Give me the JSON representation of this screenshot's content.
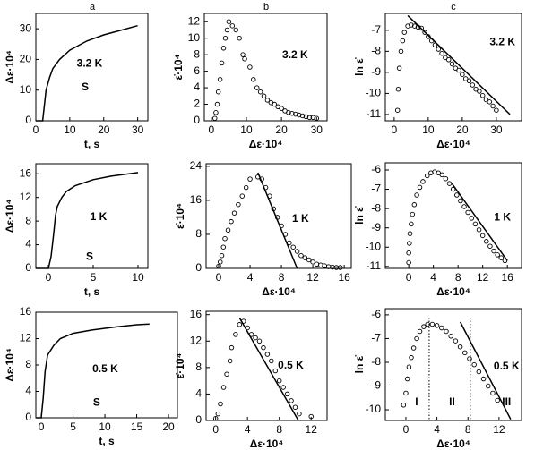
{
  "column_labels": [
    "a",
    "b",
    "c"
  ],
  "chart_data": [
    {
      "type": "line",
      "xlabel": "t, s",
      "ylabel": "Δε·10⁴",
      "annotations": [
        "3.2 K",
        "S"
      ],
      "color": "#000000",
      "xlim": [
        0,
        33
      ],
      "ylim": [
        0,
        35
      ],
      "xticks": [
        0,
        10,
        20,
        30
      ],
      "yticks": [
        0,
        10,
        20,
        30
      ],
      "x": [
        0,
        2,
        2.5,
        3,
        4,
        5,
        7,
        10,
        15,
        20,
        25,
        30
      ],
      "values": [
        0,
        0,
        5,
        10,
        14,
        17,
        20,
        23,
        26,
        28,
        29.5,
        31
      ]
    },
    {
      "type": "scatter",
      "xlabel": "Δε·10⁴",
      "ylabel": "ε̇·10⁴",
      "annotations": [
        "3.2 K"
      ],
      "color": "#000000",
      "xlim": [
        -2,
        33
      ],
      "ylim": [
        0,
        13
      ],
      "xticks": [
        0,
        10,
        20,
        30
      ],
      "yticks": [
        0,
        2,
        4,
        6,
        8,
        10,
        12
      ],
      "x": [
        1,
        1.3,
        1.7,
        2,
        2.5,
        3,
        3.5,
        4,
        4.5,
        5,
        6,
        7,
        8,
        9,
        9.5,
        11,
        12,
        13,
        14,
        15,
        16,
        17,
        18,
        19,
        20,
        21,
        22,
        23,
        24,
        25,
        26,
        27,
        28,
        29,
        30
      ],
      "values": [
        0.3,
        1,
        2,
        3.5,
        5,
        7,
        8.8,
        10,
        11,
        12,
        11.5,
        11,
        10,
        8,
        7.5,
        6.5,
        5,
        4,
        3.5,
        3,
        2.5,
        2.2,
        2,
        1.7,
        1.5,
        1.2,
        1,
        0.9,
        0.8,
        0.7,
        0.6,
        0.5,
        0.4,
        0.4,
        0.3
      ]
    },
    {
      "type": "scatter",
      "xlabel": "Δε·10⁴",
      "ylabel": "ln ε̇",
      "annotations": [
        "3.2 K"
      ],
      "color": "#000000",
      "xlim": [
        -2.6,
        37.4
      ],
      "ylim": [
        -11.3,
        -6.2
      ],
      "xticks": [
        0,
        10,
        20,
        30
      ],
      "yticks": [
        -7,
        -8,
        -9,
        -10,
        -11
      ],
      "x": [
        1,
        1.2,
        1.5,
        2,
        2.5,
        3,
        4,
        5,
        6,
        7,
        8,
        9,
        10,
        11,
        12,
        13,
        14,
        15,
        16,
        17,
        18,
        19,
        20,
        21,
        22,
        23,
        24,
        25,
        26,
        27,
        28,
        29,
        30
      ],
      "values": [
        -10.8,
        -9.8,
        -8.8,
        -8,
        -7.5,
        -7.1,
        -6.8,
        -6.75,
        -6.8,
        -6.85,
        -6.9,
        -7.1,
        -7.3,
        -7.5,
        -7.7,
        -7.9,
        -8.1,
        -8.3,
        -8.4,
        -8.6,
        -8.8,
        -8.9,
        -9.1,
        -9.3,
        -9.4,
        -9.6,
        -9.8,
        -9.9,
        -10.1,
        -10.3,
        -10.4,
        -10.6,
        -10.8
      ],
      "fit_x": [
        4,
        34
      ],
      "fit_values": [
        -6.3,
        -11
      ]
    },
    {
      "type": "line",
      "xlabel": "t, s",
      "ylabel": "Δε·10⁴",
      "annotations": [
        "1 K",
        "S"
      ],
      "color": "#000000",
      "xlim": [
        -1.4,
        11.1
      ],
      "ylim": [
        0,
        17.7
      ],
      "xticks": [
        0,
        5,
        10
      ],
      "yticks": [
        0,
        4,
        8,
        12,
        16
      ],
      "x": [
        -1.4,
        0,
        0.3,
        0.6,
        0.8,
        1,
        1.5,
        2,
        3,
        5,
        7,
        10
      ],
      "values": [
        0,
        0,
        2,
        6,
        9,
        10.5,
        12,
        13,
        14,
        15,
        15.6,
        16.2
      ]
    },
    {
      "type": "scatter",
      "xlabel": "Δε·10⁴",
      "ylabel": "ε̇·10⁴",
      "annotations": [
        "1 K"
      ],
      "color": "#000000",
      "xlim": [
        -1.6,
        16.9
      ],
      "ylim": [
        0,
        24.6
      ],
      "xticks": [
        0,
        4,
        8,
        12,
        16
      ],
      "yticks": [
        0,
        8,
        16,
        24
      ],
      "x": [
        0,
        0.2,
        0.4,
        0.6,
        0.8,
        1.2,
        1.6,
        2,
        2.5,
        3,
        3.5,
        4,
        5,
        5.5,
        6,
        6.5,
        7,
        7.5,
        8,
        8.5,
        9,
        9.5,
        10,
        10.5,
        11,
        11.5,
        12,
        12.5,
        13,
        13.5,
        14,
        14.5,
        15,
        15.5
      ],
      "values": [
        0.5,
        1.5,
        3,
        5,
        7,
        9,
        11,
        13,
        15,
        17,
        19,
        21,
        21.5,
        21,
        19,
        17,
        14,
        12,
        10,
        8,
        6,
        5,
        4,
        3,
        2.5,
        2,
        1.5,
        1,
        0.8,
        0.6,
        0.4,
        0.3,
        0.2,
        0.2
      ],
      "fit_x": [
        5,
        10
      ],
      "fit_values": [
        22.5,
        0
      ]
    },
    {
      "type": "scatter",
      "xlabel": "Δε·10⁴",
      "ylabel": "ln ε̇",
      "annotations": [
        "1 K"
      ],
      "color": "#000000",
      "xlim": [
        -3.8,
        18.3
      ],
      "ylim": [
        -11.1,
        -5.63
      ],
      "xticks": [
        0,
        4,
        8,
        12,
        16
      ],
      "yticks": [
        -6,
        -7,
        -8,
        -9,
        -10,
        -11
      ],
      "x": [
        0,
        0,
        0.1,
        0.2,
        0.4,
        0.6,
        0.9,
        1.3,
        1.8,
        2.3,
        3,
        3.6,
        4.2,
        4.8,
        5.4,
        6,
        6.6,
        7.2,
        7.8,
        8.4,
        9,
        9.6,
        10.2,
        10.8,
        11.4,
        12,
        12.6,
        13.2,
        13.8,
        14.4,
        15,
        15.6
      ],
      "values": [
        -10.8,
        -10.3,
        -9.8,
        -9.3,
        -8.8,
        -8.3,
        -7.8,
        -7.3,
        -6.9,
        -6.6,
        -6.3,
        -6.15,
        -6.1,
        -6.15,
        -6.25,
        -6.45,
        -6.7,
        -7,
        -7.3,
        -7.6,
        -7.9,
        -8.2,
        -8.5,
        -8.8,
        -9.1,
        -9.4,
        -9.7,
        -9.95,
        -10.2,
        -10.4,
        -10.55,
        -10.7
      ],
      "fit_x": [
        7,
        16
      ],
      "fit_values": [
        -6.7,
        -10.7
      ]
    },
    {
      "type": "line",
      "xlabel": "t, s",
      "ylabel": "Δε·10⁴",
      "annotations": [
        "0.5 K",
        "S"
      ],
      "color": "#000000",
      "xlim": [
        -0.85,
        21.4
      ],
      "ylim": [
        0,
        16
      ],
      "xticks": [
        0,
        5,
        10,
        15,
        20
      ],
      "yticks": [
        0,
        4,
        8,
        12,
        16
      ],
      "x": [
        -0.8,
        0,
        0.3,
        0.6,
        1,
        2,
        3,
        5,
        8,
        12,
        15,
        17
      ],
      "values": [
        0,
        0,
        3,
        7,
        9.5,
        11,
        12,
        12.8,
        13.3,
        13.8,
        14.1,
        14.2
      ]
    },
    {
      "type": "scatter",
      "xlabel": "Δε·10⁴",
      "ylabel": "ε̇·10⁴",
      "annotations": [
        "0.5 K"
      ],
      "color": "#000000",
      "xlim": [
        -1.2,
        14
      ],
      "ylim": [
        0,
        16.5
      ],
      "xticks": [
        0,
        4,
        8,
        12
      ],
      "yticks": [
        0,
        4,
        8,
        12,
        16
      ],
      "x": [
        0,
        0.3,
        0.6,
        1,
        1.4,
        1.8,
        2,
        2.5,
        3,
        3.5,
        4,
        4.5,
        5,
        5.5,
        6,
        6.5,
        7,
        7.5,
        8,
        8.5,
        9,
        9.5,
        10,
        10.5,
        12
      ],
      "values": [
        0.3,
        1,
        2.5,
        5,
        7,
        9,
        11,
        13,
        14.5,
        15,
        14,
        13,
        12.5,
        12,
        11,
        10,
        9,
        7.5,
        6,
        5,
        4,
        3,
        2,
        1,
        0.6
      ],
      "fit_x": [
        3,
        10.4
      ],
      "fit_values": [
        15.5,
        0
      ]
    },
    {
      "type": "scatter",
      "xlabel": "Δε·10⁴",
      "ylabel": "ln ε̇",
      "annotations": [
        "0.5 K",
        "I",
        "II",
        "III"
      ],
      "color": "#000000",
      "xlim": [
        -2.65,
        14.9
      ],
      "ylim": [
        -10.45,
        -5.74
      ],
      "xticks": [
        0,
        4,
        8,
        12
      ],
      "yticks": [
        -6,
        -7,
        -8,
        -9,
        -10
      ],
      "x": [
        -0.3,
        0,
        0.2,
        0.4,
        0.7,
        1,
        1.4,
        1.8,
        2.3,
        2.8,
        3.4,
        4,
        4.6,
        5.2,
        5.8,
        6.4,
        7,
        7.6,
        8.2,
        8.8,
        9.4,
        10,
        10.6,
        11.2,
        11.8
      ],
      "values": [
        -9.8,
        -9.3,
        -8.7,
        -8.2,
        -7.8,
        -7.4,
        -7,
        -6.7,
        -6.5,
        -6.4,
        -6.4,
        -6.45,
        -6.55,
        -6.7,
        -6.9,
        -7.1,
        -7.35,
        -7.6,
        -7.85,
        -8.1,
        -8.4,
        -8.7,
        -9,
        -9.3,
        -9.6
      ],
      "fit_x": [
        7,
        13.5
      ],
      "fit_values": [
        -6.3,
        -10.4
      ],
      "vlines": [
        3,
        8.3
      ]
    }
  ]
}
